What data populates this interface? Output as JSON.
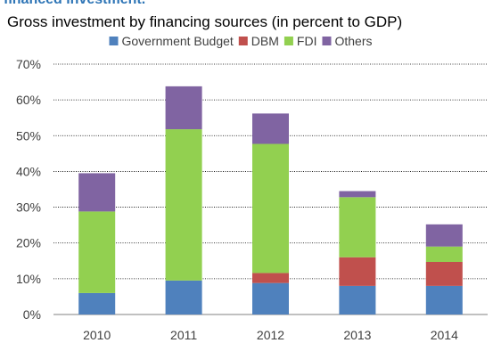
{
  "header_fragment": "financed investment.",
  "chart_data": {
    "type": "bar",
    "stacked": true,
    "title": "Gross investment by financing sources (in percent to GDP)",
    "categories": [
      "2010",
      "2011",
      "2012",
      "2013",
      "2014"
    ],
    "series": [
      {
        "name": "Government Budget",
        "color": "#4f81bd",
        "values": [
          6,
          9.5,
          8.8,
          8,
          8
        ]
      },
      {
        "name": "DBM",
        "color": "#c0504d",
        "values": [
          0,
          0,
          2.8,
          8,
          6.7
        ]
      },
      {
        "name": "FDI",
        "color": "#92d050",
        "values": [
          22.8,
          42.3,
          36.1,
          16.8,
          4.3
        ]
      },
      {
        "name": "Others",
        "color": "#8064a2",
        "values": [
          10.7,
          12,
          8.5,
          1.7,
          6.2
        ]
      }
    ],
    "ylim": [
      0,
      70
    ],
    "yticks": [
      "0%",
      "10%",
      "20%",
      "30%",
      "40%",
      "50%",
      "60%",
      "70%"
    ],
    "grid": true,
    "legend_position": "top"
  }
}
